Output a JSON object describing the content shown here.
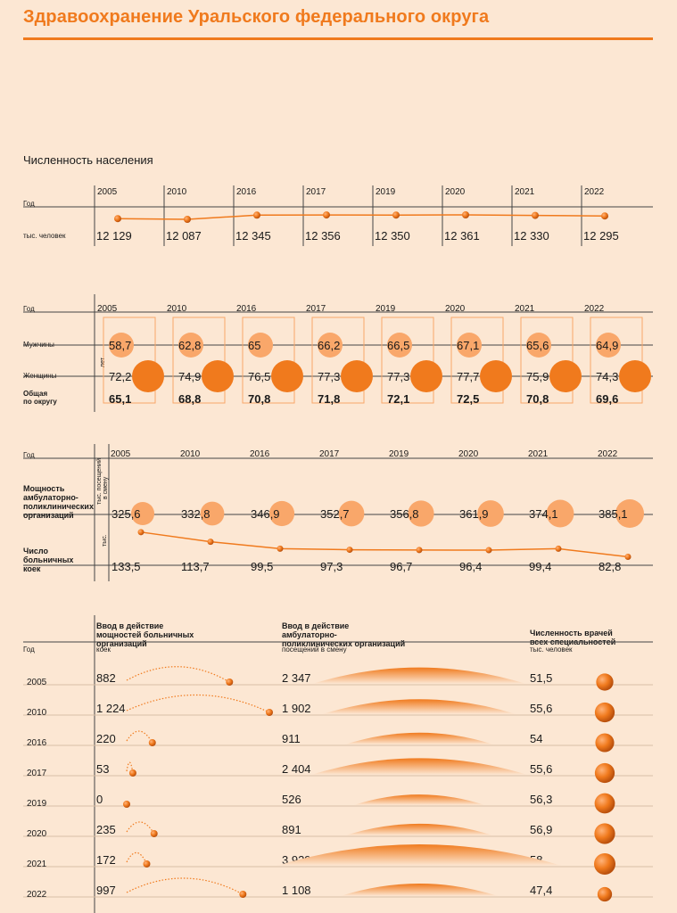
{
  "title": "Здравоохранение Уральского федерального округа",
  "years": [
    "2005",
    "2010",
    "2016",
    "2017",
    "2019",
    "2020",
    "2021",
    "2022"
  ],
  "colors": {
    "accent": "#f07a1d",
    "light_circle": "#f9a76a",
    "background": "#fce7d3"
  },
  "population": {
    "heading": "Численность населения",
    "year_label": "Год",
    "unit_label": "тыс. человек",
    "values": [
      "12 129",
      "12 087",
      "12 345",
      "12 356",
      "12 350",
      "12 361",
      "12 330",
      "12 295"
    ]
  },
  "life_expectancy": {
    "year_label": "Год",
    "unit_label": "лет",
    "men_label": "Мужчины",
    "women_label": "Женщины",
    "total_label": "Общая по округу",
    "men": [
      "58,7",
      "62,8",
      "65",
      "66,2",
      "66,5",
      "67,1",
      "65,6",
      "64,9"
    ],
    "women": [
      "72,2",
      "74,9",
      "76,5",
      "77,3",
      "77,3",
      "77,7",
      "75,9",
      "74,3"
    ],
    "total": [
      "65,1",
      "68,8",
      "70,8",
      "71,8",
      "72,1",
      "72,5",
      "70,8",
      "69,6"
    ]
  },
  "capacity": {
    "year_label": "Год",
    "amb_label": "Мощность амбулаторно-поликлинических организаций",
    "amb_unit": "тыс. посещений в смену",
    "beds_label": "Число больничных коек",
    "beds_unit": "тыс.",
    "amb_values": [
      "325,6",
      "332,8",
      "346,9",
      "352,7",
      "356,8",
      "361,9",
      "374,1",
      "385,1"
    ],
    "beds_values": [
      "133,5",
      "113,7",
      "99,5",
      "97,3",
      "96,7",
      "96,4",
      "99,4",
      "82,8"
    ]
  },
  "table": {
    "year_label": "Год",
    "col1_title": "Ввод в действие мощностей больничных организаций",
    "col1_unit": "коек",
    "col2_title": "Ввод в действие амбулаторно-поликлинических организаций",
    "col2_unit": "посещений в смену",
    "col3_title": "Численность врачей всех специальностей",
    "col3_unit": "тыс. человек",
    "beds_input": [
      "882",
      "1 224",
      "220",
      "53",
      "0",
      "235",
      "172",
      "997"
    ],
    "visits_input": [
      "2 347",
      "1 902",
      "911",
      "2 404",
      "526",
      "891",
      "3 929",
      "1 108"
    ],
    "doctors": [
      "51,5",
      "55,6",
      "54",
      "55,6",
      "56,3",
      "56,9",
      "58",
      "47,4"
    ]
  },
  "chart_data": [
    {
      "type": "line",
      "title": "Численность населения",
      "x": [
        2005,
        2010,
        2016,
        2017,
        2019,
        2020,
        2021,
        2022
      ],
      "y": [
        12129,
        12087,
        12345,
        12356,
        12350,
        12361,
        12330,
        12295
      ],
      "ylabel": "тыс. человек"
    },
    {
      "type": "scatter",
      "x": [
        2005,
        2010,
        2016,
        2017,
        2019,
        2020,
        2021,
        2022
      ],
      "ylabel": "лет",
      "series": [
        {
          "name": "Мужчины",
          "values": [
            58.7,
            62.8,
            65,
            66.2,
            66.5,
            67.1,
            65.6,
            64.9
          ]
        },
        {
          "name": "Женщины",
          "values": [
            72.2,
            74.9,
            76.5,
            77.3,
            77.3,
            77.7,
            75.9,
            74.3
          ]
        },
        {
          "name": "Общая по округу",
          "values": [
            65.1,
            68.8,
            70.8,
            71.8,
            72.1,
            72.5,
            70.8,
            69.6
          ]
        }
      ]
    },
    {
      "type": "scatter",
      "x": [
        2005,
        2010,
        2016,
        2017,
        2019,
        2020,
        2021,
        2022
      ],
      "series": [
        {
          "name": "Мощность амбулаторно-поликлинических организаций",
          "values": [
            325.6,
            332.8,
            346.9,
            352.7,
            356.8,
            361.9,
            374.1,
            385.1
          ]
        }
      ],
      "ylabel": "тыс. посещений в смену"
    },
    {
      "type": "line",
      "x": [
        2005,
        2010,
        2016,
        2017,
        2019,
        2020,
        2021,
        2022
      ],
      "series": [
        {
          "name": "Число больничных коек",
          "values": [
            133.5,
            113.7,
            99.5,
            97.3,
            96.7,
            96.4,
            99.4,
            82.8
          ]
        }
      ],
      "ylabel": "тыс."
    },
    {
      "type": "table",
      "categories": [
        2005,
        2010,
        2016,
        2017,
        2019,
        2020,
        2021,
        2022
      ],
      "series": [
        {
          "name": "Ввод в действие мощностей больничных организаций",
          "values": [
            882,
            1224,
            220,
            53,
            0,
            235,
            172,
            997
          ]
        },
        {
          "name": "Ввод в действие амбулаторно-поликлинических организаций",
          "values": [
            2347,
            1902,
            911,
            2404,
            526,
            891,
            3929,
            1108
          ]
        },
        {
          "name": "Численность врачей всех специальностей",
          "values": [
            51.5,
            55.6,
            54,
            55.6,
            56.3,
            56.9,
            58,
            47.4
          ]
        }
      ]
    }
  ]
}
